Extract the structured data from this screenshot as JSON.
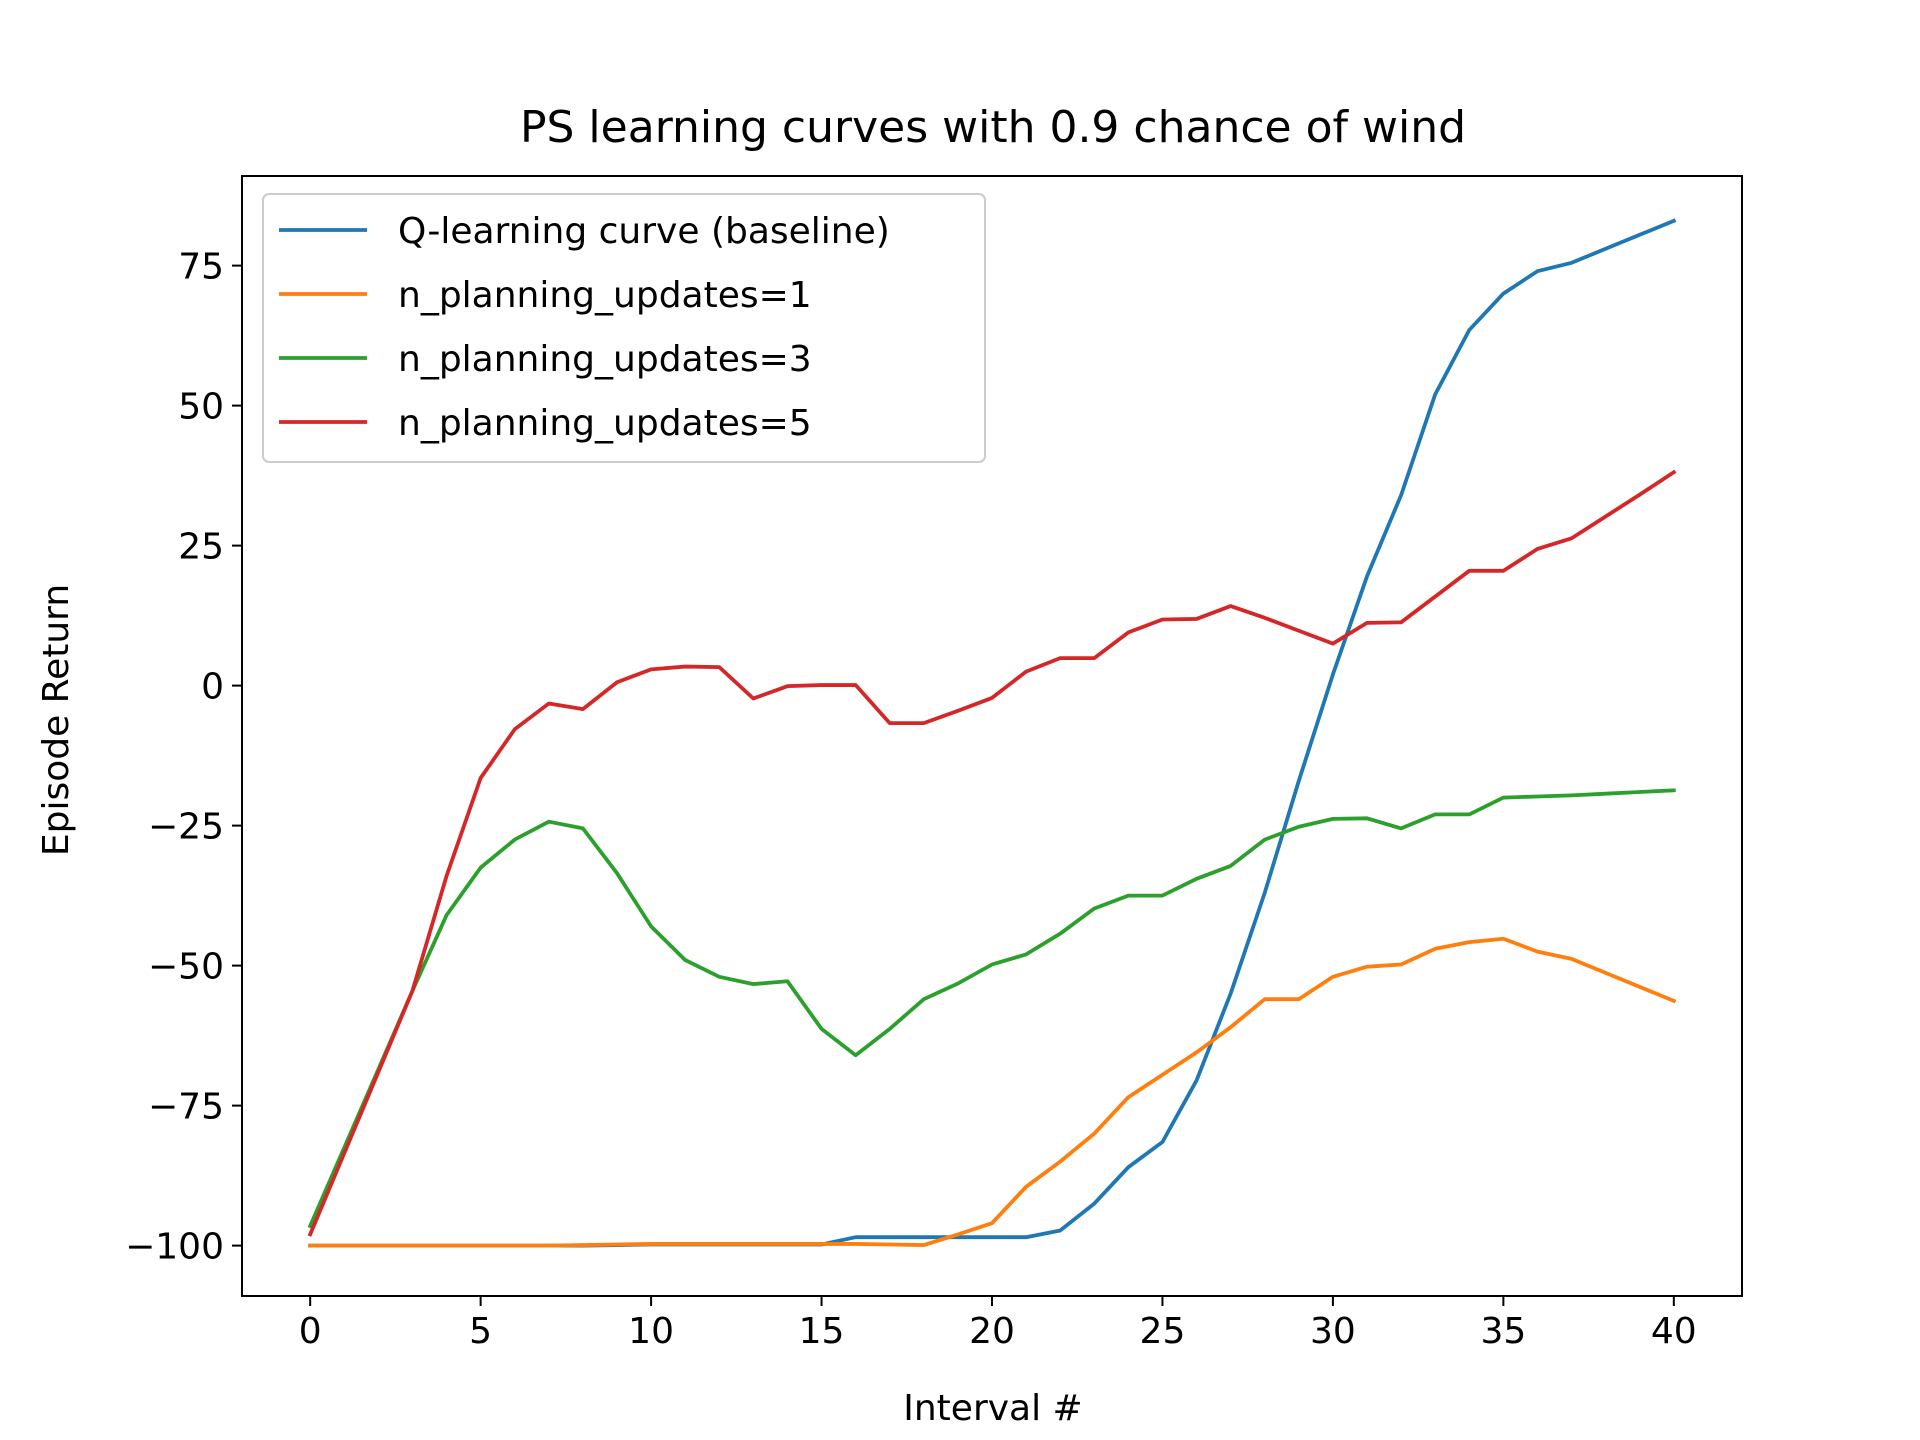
{
  "chart_data": {
    "type": "line",
    "title": "PS learning curves with 0.9 chance of wind",
    "xlabel": "Interval #",
    "ylabel": "Episode Return",
    "xlim": [
      -2,
      42
    ],
    "ylim": [
      -109,
      91
    ],
    "xticks": [
      0,
      5,
      10,
      15,
      20,
      25,
      30,
      35,
      40
    ],
    "xtick_labels": [
      "0",
      "5",
      "10",
      "15",
      "20",
      "25",
      "30",
      "35",
      "40"
    ],
    "yticks": [
      -100,
      -75,
      -50,
      -25,
      0,
      25,
      50,
      75
    ],
    "ytick_labels": [
      "−100",
      "−75",
      "−50",
      "−25",
      "0",
      "25",
      "50",
      "75"
    ],
    "grid": false,
    "legend_position": "top-left",
    "x": [
      0,
      1,
      2,
      3,
      4,
      5,
      6,
      7,
      8,
      9,
      10,
      11,
      12,
      13,
      14,
      15,
      16,
      17,
      18,
      19,
      20,
      21,
      22,
      23,
      24,
      25,
      26,
      27,
      28,
      29,
      30,
      31,
      32,
      33,
      34,
      35,
      36,
      37,
      38,
      39,
      40
    ],
    "series": [
      {
        "name": "Q-learning curve (baseline)",
        "color": "#1f77b4",
        "values": [
          -100,
          -100,
          -100,
          -100,
          -100,
          -100,
          -100,
          -100,
          -100,
          -99.9,
          -99.8,
          -99.8,
          -99.8,
          -99.8,
          -99.8,
          -99.8,
          -98.5,
          -98.5,
          -98.5,
          -98.5,
          -98.5,
          -98.5,
          -97.3,
          -92.5,
          -86,
          -81.5,
          -70.5,
          -55,
          -37,
          -17,
          2,
          19.5,
          34,
          52,
          63.5,
          70,
          74,
          75.5,
          78,
          80.5,
          83
        ]
      },
      {
        "name": "n_planning_updates=1",
        "color": "#ff7f0e",
        "values": [
          -100,
          -100,
          -100,
          -100,
          -100,
          -100,
          -100,
          -100,
          -99.9,
          -99.8,
          -99.7,
          -99.7,
          -99.7,
          -99.7,
          -99.7,
          -99.7,
          -99.7,
          -99.8,
          -99.9,
          -98,
          -96,
          -89.5,
          -85,
          -80,
          -73.5,
          -69.5,
          -65.5,
          -61,
          -56,
          -56,
          -52,
          -50.2,
          -49.8,
          -47,
          -45.8,
          -45.2,
          -47.5,
          -48.8,
          -51.3,
          -53.8,
          -56.3
        ]
      },
      {
        "name": "n_planning_updates=3",
        "color": "#2ca02c",
        "values": [
          -96.5,
          -82.5,
          -68.5,
          -54.5,
          -41,
          -32.5,
          -27.5,
          -24.3,
          -25.5,
          -33.5,
          -43,
          -49,
          -52,
          -53.3,
          -52.8,
          -61.3,
          -66,
          -61.3,
          -56,
          -53.2,
          -49.8,
          -48,
          -44.3,
          -39.8,
          -37.5,
          -37.5,
          -34.5,
          -32.2,
          -27.5,
          -25.2,
          -23.8,
          -23.7,
          -25.5,
          -23,
          -23,
          -20,
          -19.8,
          -19.6,
          -19.3,
          -19,
          -18.7
        ]
      },
      {
        "name": "n_planning_updates=5",
        "color": "#d62728",
        "values": [
          -98,
          -83.5,
          -69,
          -54.5,
          -34,
          -16.5,
          -7.8,
          -3.2,
          -4.2,
          0.6,
          2.9,
          3.4,
          3.3,
          -2.3,
          -0.1,
          0.1,
          0.1,
          -6.7,
          -6.7,
          -4.5,
          -2.2,
          2.5,
          4.9,
          4.9,
          9.5,
          11.8,
          11.9,
          14.2,
          12.1,
          9.8,
          7.5,
          11.2,
          11.3,
          15.9,
          20.5,
          20.5,
          24.4,
          26.3,
          30.2,
          34.1,
          38.1
        ]
      }
    ]
  }
}
